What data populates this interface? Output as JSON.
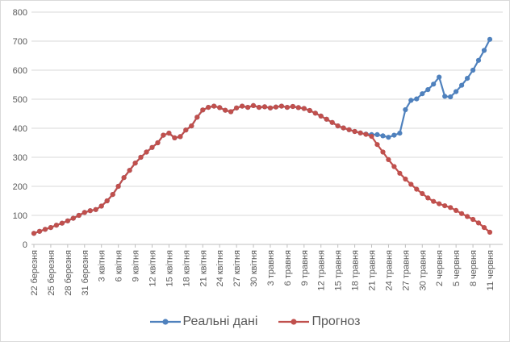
{
  "chart_data": {
    "type": "line",
    "title": "",
    "xlabel": "",
    "ylabel": "",
    "ylim": [
      0,
      800
    ],
    "y_tick_step": 100,
    "y_tick_labels": [
      "0",
      "100",
      "200",
      "300",
      "400",
      "500",
      "600",
      "700",
      "800"
    ],
    "grid": "horizontal",
    "legend_position": "bottom",
    "n_points": 82,
    "tick_every": 3,
    "x_tick_labels": [
      "22 березня",
      "25 березня",
      "28 березня",
      "31 березня",
      "3 квітня",
      "6 квітня",
      "9 квітня",
      "12 квітня",
      "15 квітня",
      "18 квітня",
      "21 квітня",
      "24 квітня",
      "27 квітня",
      "30 квітня",
      "3 травня",
      "6 травня",
      "9 травня",
      "12 травня",
      "15 травня",
      "18 травня",
      "21 травня",
      "24 травня",
      "27 травня",
      "30 травня",
      "2 червня",
      "5 червня",
      "8 червня",
      "11 червня"
    ],
    "series": [
      {
        "name": "Реальні дані",
        "color": "#4F81BD",
        "marker": "circle",
        "values": [
          38,
          45,
          52,
          58,
          66,
          73,
          81,
          90,
          100,
          110,
          116,
          120,
          132,
          150,
          172,
          200,
          230,
          255,
          280,
          300,
          318,
          334,
          350,
          376,
          383,
          367,
          371,
          394,
          408,
          438,
          463,
          472,
          476,
          471,
          462,
          457,
          470,
          476,
          472,
          478,
          472,
          474,
          470,
          473,
          476,
          472,
          475,
          471,
          468,
          461,
          452,
          442,
          431,
          420,
          408,
          401,
          395,
          389,
          384,
          380,
          378,
          378,
          374,
          369,
          376,
          383,
          464,
          496,
          501,
          519,
          533,
          552,
          576,
          510,
          508,
          526,
          548,
          572,
          600,
          634,
          668,
          706
        ]
      },
      {
        "name": "Прогноз",
        "color": "#C0504D",
        "marker": "circle",
        "values": [
          38,
          45,
          52,
          58,
          66,
          73,
          81,
          90,
          100,
          110,
          116,
          120,
          132,
          150,
          172,
          200,
          230,
          255,
          280,
          300,
          318,
          334,
          350,
          376,
          383,
          367,
          371,
          394,
          408,
          438,
          463,
          472,
          476,
          471,
          462,
          457,
          470,
          476,
          472,
          478,
          472,
          474,
          470,
          473,
          476,
          472,
          475,
          471,
          468,
          461,
          452,
          442,
          431,
          420,
          408,
          401,
          395,
          389,
          384,
          379,
          372,
          344,
          318,
          292,
          268,
          245,
          225,
          207,
          190,
          175,
          160,
          148,
          140,
          133,
          127,
          117,
          106,
          96,
          86,
          74,
          58,
          42
        ]
      }
    ]
  },
  "legend": {
    "items": [
      {
        "label": "Реальні дані",
        "color": "#4F81BD"
      },
      {
        "label": "Прогноз",
        "color": "#C0504D"
      }
    ]
  },
  "colors": {
    "background": "#ffffff",
    "border": "#d9d9d9",
    "gridline": "#d9d9d9",
    "axis": "#bfbfbf",
    "text": "#595959",
    "series_real": "#4F81BD",
    "series_forecast": "#C0504D"
  }
}
